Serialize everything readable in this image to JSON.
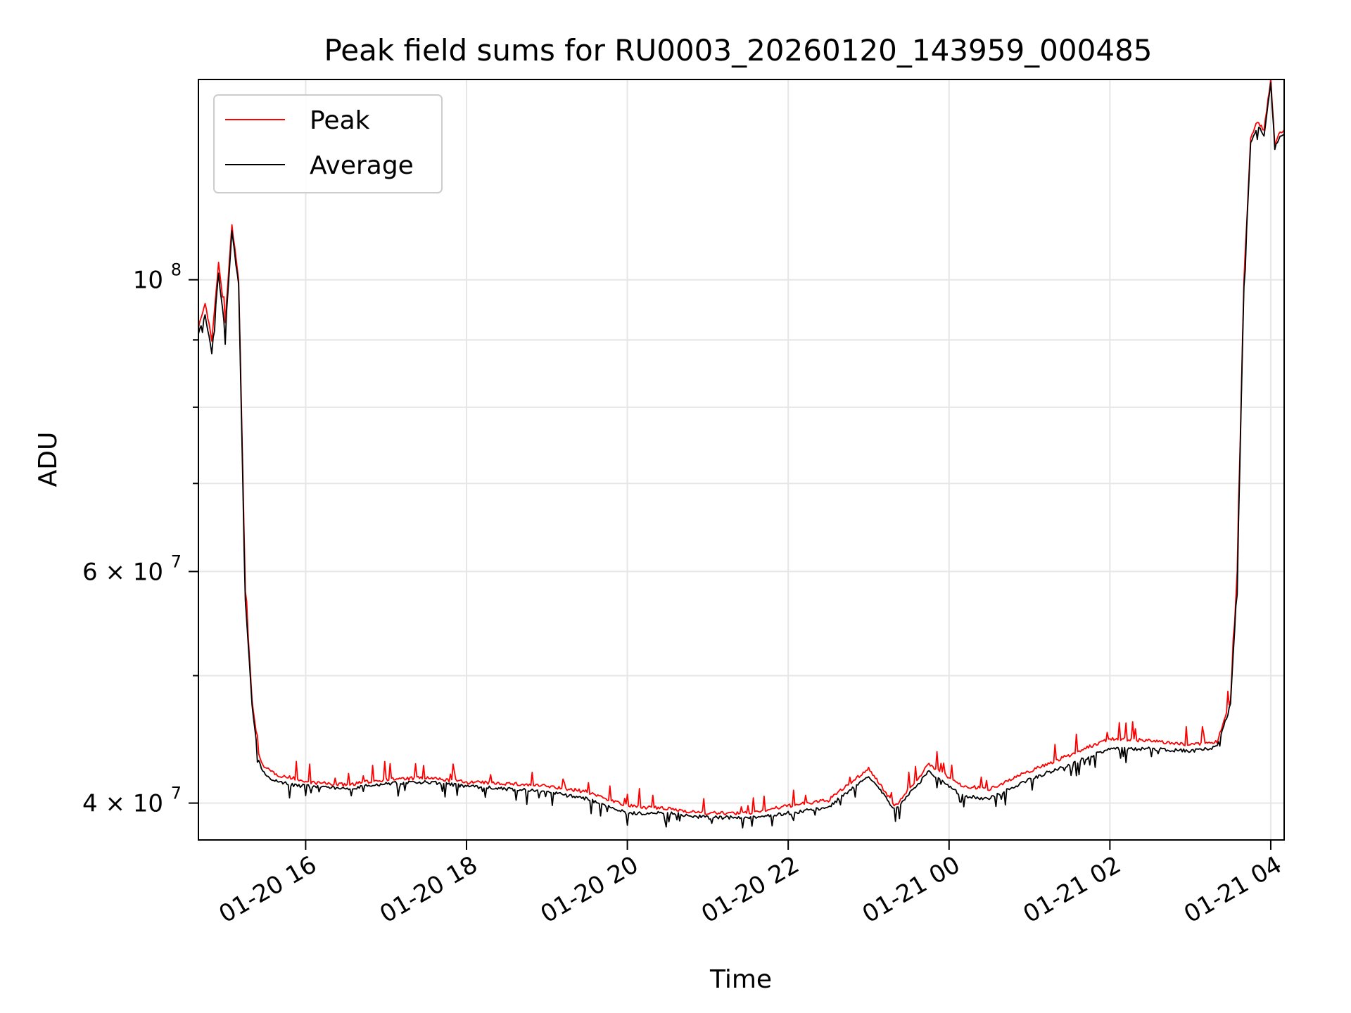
{
  "chart_data": {
    "type": "line",
    "title": "Peak field sums for RU0003_20260120_143959_000485",
    "xlabel": "Time",
    "ylabel": "ADU",
    "yscale": "log",
    "xlim": [
      "2026-01-20 14:40",
      "2026-01-21 04:10"
    ],
    "ylim": [
      37500000,
      142000000
    ],
    "grid": true,
    "legend_position": "upper-left",
    "x_ticks": [
      {
        "value": "2026-01-20 16:00",
        "label": "01-20 16"
      },
      {
        "value": "2026-01-20 18:00",
        "label": "01-20 18"
      },
      {
        "value": "2026-01-20 20:00",
        "label": "01-20 20"
      },
      {
        "value": "2026-01-20 22:00",
        "label": "01-20 22"
      },
      {
        "value": "2026-01-21 00:00",
        "label": "01-21 00"
      },
      {
        "value": "2026-01-21 02:00",
        "label": "01-21 02"
      },
      {
        "value": "2026-01-21 04:00",
        "label": "01-21 04"
      }
    ],
    "y_ticks": [
      {
        "value": 40000000,
        "label_base": "4 × 10",
        "label_exp": "7"
      },
      {
        "value": 60000000,
        "label_base": "6 × 10",
        "label_exp": "7"
      },
      {
        "value": 100000000,
        "label_base": "10",
        "label_exp": "8"
      }
    ],
    "y_minor_ticks": [
      50000000,
      70000000,
      80000000,
      90000000
    ],
    "series": [
      {
        "name": "Peak",
        "color": "#ff0000",
        "x": [
          "2026-01-20 14:40",
          "2026-01-20 14:45",
          "2026-01-20 14:50",
          "2026-01-20 14:55",
          "2026-01-20 15:00",
          "2026-01-20 15:05",
          "2026-01-20 15:10",
          "2026-01-20 15:15",
          "2026-01-20 15:20",
          "2026-01-20 15:25",
          "2026-01-20 15:30",
          "2026-01-20 15:40",
          "2026-01-20 15:50",
          "2026-01-20 16:00",
          "2026-01-20 16:30",
          "2026-01-20 17:00",
          "2026-01-20 17:30",
          "2026-01-20 18:00",
          "2026-01-20 18:30",
          "2026-01-20 19:00",
          "2026-01-20 19:30",
          "2026-01-20 20:00",
          "2026-01-20 20:30",
          "2026-01-20 21:00",
          "2026-01-20 21:30",
          "2026-01-20 22:00",
          "2026-01-20 22:30",
          "2026-01-20 23:00",
          "2026-01-20 23:20",
          "2026-01-20 23:45",
          "2026-01-21 00:10",
          "2026-01-21 00:30",
          "2026-01-21 01:00",
          "2026-01-21 01:30",
          "2026-01-21 02:00",
          "2026-01-21 02:30",
          "2026-01-21 03:00",
          "2026-01-21 03:20",
          "2026-01-21 03:30",
          "2026-01-21 03:35",
          "2026-01-21 03:40",
          "2026-01-21 03:45",
          "2026-01-21 03:50",
          "2026-01-21 03:55",
          "2026-01-21 04:00",
          "2026-01-21 04:03",
          "2026-01-21 04:06",
          "2026-01-21 04:10"
        ],
        "values": [
          92000000,
          96000000,
          90000000,
          103000000,
          93000000,
          110000000,
          100000000,
          58000000,
          48000000,
          43500000,
          42500000,
          42000000,
          41800000,
          41500000,
          41300000,
          41700000,
          41800000,
          41500000,
          41400000,
          41200000,
          40800000,
          39800000,
          39600000,
          39300000,
          39300000,
          39800000,
          40200000,
          42500000,
          39800000,
          42800000,
          41200000,
          41000000,
          42300000,
          43500000,
          44800000,
          44600000,
          44300000,
          44500000,
          48000000,
          60000000,
          100000000,
          128000000,
          132000000,
          130000000,
          142000000,
          127000000,
          129000000,
          130000000
        ]
      },
      {
        "name": "Average",
        "color": "#000000",
        "x": [
          "2026-01-20 14:40",
          "2026-01-20 14:45",
          "2026-01-20 14:50",
          "2026-01-20 14:55",
          "2026-01-20 15:00",
          "2026-01-20 15:05",
          "2026-01-20 15:10",
          "2026-01-20 15:15",
          "2026-01-20 15:20",
          "2026-01-20 15:25",
          "2026-01-20 15:30",
          "2026-01-20 15:40",
          "2026-01-20 15:50",
          "2026-01-20 16:00",
          "2026-01-20 16:30",
          "2026-01-20 17:00",
          "2026-01-20 17:30",
          "2026-01-20 18:00",
          "2026-01-20 18:30",
          "2026-01-20 19:00",
          "2026-01-20 19:30",
          "2026-01-20 20:00",
          "2026-01-20 20:30",
          "2026-01-20 21:00",
          "2026-01-20 21:30",
          "2026-01-20 22:00",
          "2026-01-20 22:30",
          "2026-01-20 23:00",
          "2026-01-20 23:20",
          "2026-01-20 23:45",
          "2026-01-21 00:10",
          "2026-01-21 00:30",
          "2026-01-21 01:00",
          "2026-01-21 01:30",
          "2026-01-21 02:00",
          "2026-01-21 02:30",
          "2026-01-21 03:00",
          "2026-01-21 03:20",
          "2026-01-21 03:30",
          "2026-01-21 03:35",
          "2026-01-21 03:40",
          "2026-01-21 03:45",
          "2026-01-21 03:50",
          "2026-01-21 03:55",
          "2026-01-21 04:00",
          "2026-01-21 04:03",
          "2026-01-21 04:06",
          "2026-01-21 04:10"
        ],
        "values": [
          91000000,
          94000000,
          88000000,
          101000000,
          91000000,
          109000000,
          99000000,
          57000000,
          47500000,
          43000000,
          42000000,
          41500000,
          41300000,
          41200000,
          41000000,
          41400000,
          41500000,
          41200000,
          41000000,
          40800000,
          40300000,
          39300000,
          39300000,
          39000000,
          39000000,
          39300000,
          39700000,
          42000000,
          39500000,
          42300000,
          40500000,
          40300000,
          41700000,
          42800000,
          44000000,
          44000000,
          43800000,
          44100000,
          47500000,
          59000000,
          99000000,
          127000000,
          131000000,
          129000000,
          141000000,
          126000000,
          128000000,
          129000000
        ]
      }
    ]
  }
}
